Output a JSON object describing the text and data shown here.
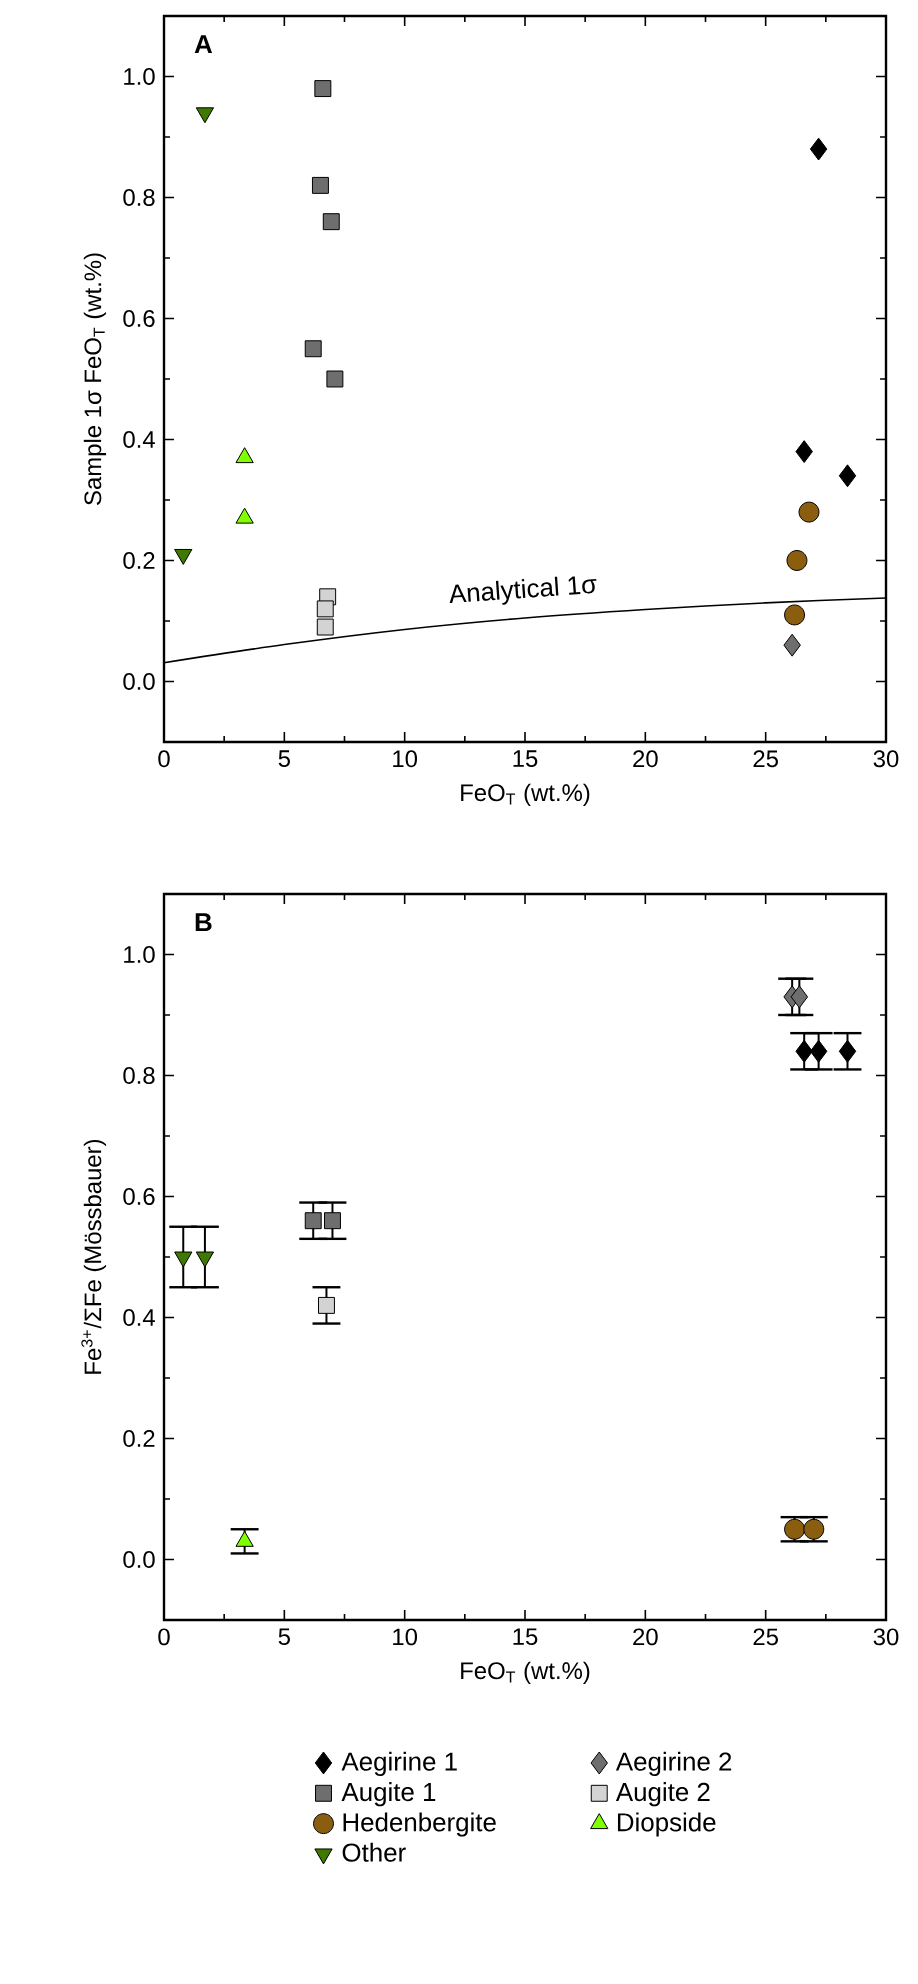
{
  "chart_data": [
    {
      "type": "scatter",
      "title": "A",
      "xlabel": "FeO$_{T}$ (wt.%)",
      "ylabel": "Sample 1σ FeO$_{T}$ (wt.%)",
      "xlim": [
        0,
        30
      ],
      "ylim": [
        -0.1,
        1.1
      ],
      "xticks": [
        0,
        5,
        10,
        15,
        20,
        25,
        30
      ],
      "yticks": [
        {
          "value": 0,
          "label": "0.0"
        },
        {
          "value": 0.2,
          "label": "0.2"
        },
        {
          "value": 0.4,
          "label": "0.4"
        },
        {
          "value": 0.6,
          "label": "0.6"
        },
        {
          "value": 0.8,
          "label": "0.8"
        },
        {
          "value": 1,
          "label": "1.0"
        }
      ],
      "legend": false,
      "series": [
        {
          "name": "Analytical 1σ",
          "type": "line",
          "marker": "none",
          "color": "#000000",
          "x": [
            0,
            5,
            10,
            15,
            20,
            25,
            30
          ],
          "values": [
            0.031,
            0.061,
            0.086,
            0.105,
            0.119,
            0.13,
            0.138
          ]
        },
        {
          "marker": "triangle-down",
          "color": "#3f7a00",
          "x": [
            1.7,
            0.8
          ],
          "values": [
            0.94,
            0.21
          ]
        },
        {
          "marker": "triangle",
          "color": "#80ff00",
          "x": [
            3.35,
            3.35
          ],
          "values": [
            0.37,
            0.27
          ]
        },
        {
          "marker": "square",
          "color": "#6e6e6e",
          "x": [
            6.6,
            6.5,
            6.95,
            6.2,
            7.1
          ],
          "values": [
            0.98,
            0.82,
            0.76,
            0.55,
            0.5
          ]
        },
        {
          "marker": "square",
          "color": "#d3d3d3",
          "x": [
            6.8,
            6.7,
            6.7
          ],
          "values": [
            0.14,
            0.12,
            0.09
          ]
        },
        {
          "marker": "diamond",
          "color": "#000000",
          "x": [
            27.2,
            26.6,
            28.4
          ],
          "values": [
            0.88,
            0.38,
            0.34
          ]
        },
        {
          "marker": "diamond",
          "color": "#6e6e6e",
          "x": [
            26.1
          ],
          "values": [
            0.06
          ]
        },
        {
          "marker": "circle",
          "color": "#8b5e0f",
          "x": [
            26.8,
            26.3,
            26.2
          ],
          "values": [
            0.28,
            0.2,
            0.11
          ]
        }
      ]
    },
    {
      "type": "scatter",
      "title": "B",
      "xlabel": "FeO$_{T}$ (wt.%)",
      "ylabel": "Fe$^{3+}$/ΣFe (Mössbauer)",
      "xlim": [
        0,
        30
      ],
      "ylim": [
        -0.1,
        1.1
      ],
      "xticks": [
        0,
        5,
        10,
        15,
        20,
        25,
        30
      ],
      "yticks": [
        {
          "value": 0,
          "label": "0.0"
        },
        {
          "value": 0.2,
          "label": "0.2"
        },
        {
          "value": 0.4,
          "label": "0.4"
        },
        {
          "value": 0.6,
          "label": "0.6"
        },
        {
          "value": 0.8,
          "label": "0.8"
        },
        {
          "value": 1,
          "label": "1.0"
        }
      ],
      "legend": "bottom",
      "series": [
        {
          "name": "Aegirine 1",
          "marker": "diamond",
          "color": "#000000",
          "x": [
            26.6,
            27.2,
            28.4
          ],
          "values": [
            0.84,
            0.84,
            0.84
          ],
          "errors": [
            0.03,
            0.03,
            0.03
          ]
        },
        {
          "name": "Aegirine 2",
          "marker": "diamond",
          "color": "#6e6e6e",
          "x": [
            26.1,
            26.4
          ],
          "values": [
            0.93,
            0.93
          ],
          "errors": [
            0.03,
            0.03
          ]
        },
        {
          "name": "Augite 1",
          "marker": "square",
          "color": "#6e6e6e",
          "x": [
            6.2,
            7.0
          ],
          "values": [
            0.56,
            0.56
          ],
          "errors": [
            0.03,
            0.03
          ]
        },
        {
          "name": "Augite 2",
          "marker": "square",
          "color": "#d3d3d3",
          "x": [
            6.75
          ],
          "values": [
            0.42
          ],
          "errors": [
            0.03
          ]
        },
        {
          "name": "Hedenbergite",
          "marker": "circle",
          "color": "#8b5e0f",
          "x": [
            26.2,
            27.0
          ],
          "values": [
            0.05,
            0.05
          ],
          "errors": [
            0.02,
            0.02
          ]
        },
        {
          "name": "Diopside",
          "marker": "triangle",
          "color": "#80ff00",
          "x": [
            3.35
          ],
          "values": [
            0.03
          ],
          "errors": [
            0.02
          ]
        },
        {
          "name": "Other",
          "marker": "triangle-down",
          "color": "#3f7a00",
          "x": [
            0.8,
            1.7
          ],
          "values": [
            0.5,
            0.5
          ],
          "errors": [
            0.05,
            0.05
          ]
        }
      ]
    }
  ]
}
